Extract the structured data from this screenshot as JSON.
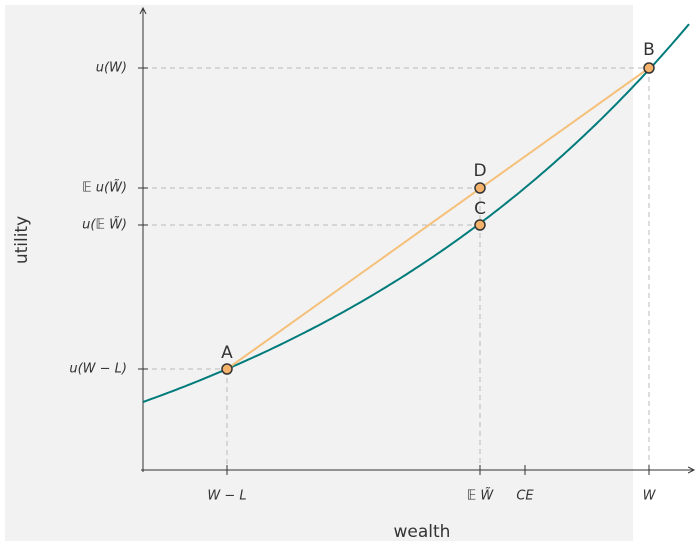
{
  "axes": {
    "x_label": "wealth",
    "y_label": "utility"
  },
  "y_ticks": [
    "u(W)",
    "𝔼 u(W̃)",
    "u(𝔼 W̃)",
    "u(W − L)"
  ],
  "x_ticks": [
    "W − L",
    "𝔼 W̃",
    "CE",
    "W"
  ],
  "points": [
    {
      "label": "A"
    },
    {
      "label": "C"
    },
    {
      "label": "D"
    },
    {
      "label": "B"
    }
  ]
}
